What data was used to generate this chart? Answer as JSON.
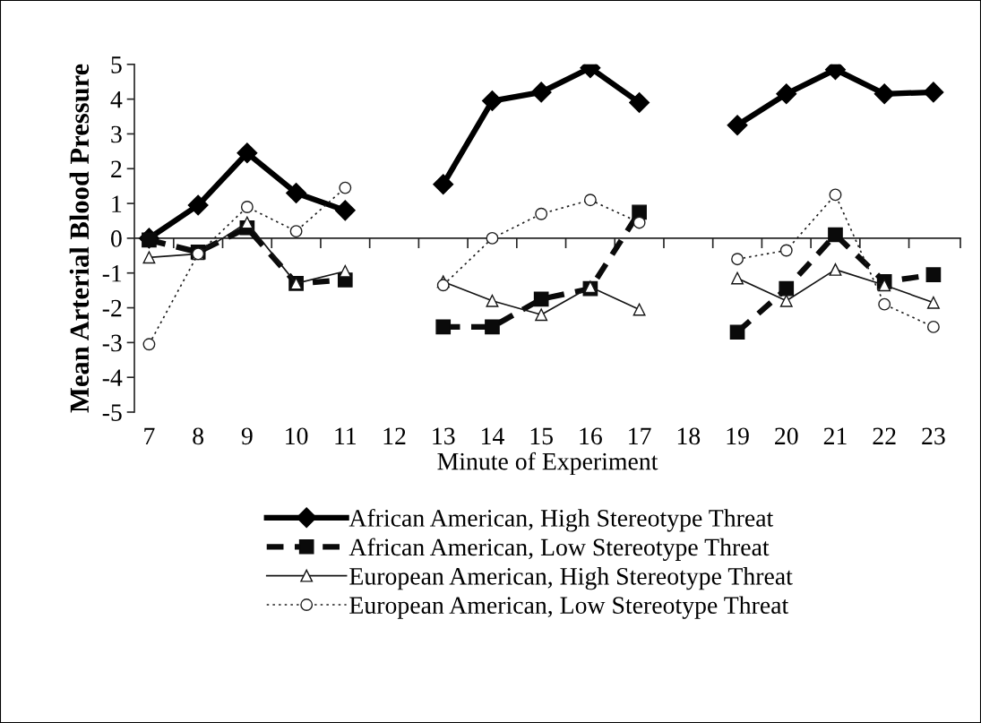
{
  "chart_data": {
    "type": "line",
    "xlabel": "Minute of Experiment",
    "ylabel": "Mean Arterial Blood Pressure",
    "categories": [
      "7",
      "8",
      "9",
      "10",
      "11",
      "12",
      "13",
      "14",
      "15",
      "16",
      "17",
      "18",
      "19",
      "20",
      "21",
      "22",
      "23"
    ],
    "ylim": [
      -5,
      5
    ],
    "yticks": [
      -5,
      -4,
      -3,
      -2,
      -1,
      0,
      1,
      2,
      3,
      4,
      5
    ],
    "legend": "bottom",
    "series": [
      {
        "name": "African American, High Stereotype Threat",
        "color": "#000000",
        "marker": "diamond",
        "line_style": "solid",
        "values": [
          0,
          0.95,
          2.45,
          1.3,
          0.8,
          null,
          1.55,
          3.95,
          4.2,
          4.9,
          3.9,
          null,
          3.25,
          4.15,
          4.85,
          4.15,
          4.2
        ]
      },
      {
        "name": "African American, Low Stereotype Threat",
        "color": "#0a0a0a",
        "marker": "square",
        "line_style": "dashed",
        "values": [
          -0.05,
          -0.4,
          0.3,
          -1.3,
          -1.2,
          null,
          -2.55,
          -2.55,
          -1.75,
          -1.45,
          0.75,
          null,
          -2.7,
          -1.45,
          0.1,
          -1.25,
          -1.05
        ]
      },
      {
        "name": "European American, High Stereotype Threat",
        "color": "#141414",
        "marker": "triangle",
        "line_style": "solid",
        "values": [
          -0.55,
          -0.45,
          0.45,
          -1.3,
          -0.95,
          null,
          -1.25,
          -1.8,
          -2.2,
          -1.4,
          -2.05,
          null,
          -1.15,
          -1.8,
          -0.9,
          -1.35,
          -1.85
        ]
      },
      {
        "name": "European American, Low Stereotype Threat",
        "color": "#1e1e1e",
        "marker": "circle",
        "line_style": "dotted",
        "values": [
          -3.05,
          -0.45,
          0.9,
          0.2,
          1.45,
          null,
          -1.35,
          0.0,
          0.7,
          1.1,
          0.45,
          null,
          -0.6,
          -0.35,
          1.25,
          -1.9,
          -2.55
        ]
      }
    ]
  }
}
